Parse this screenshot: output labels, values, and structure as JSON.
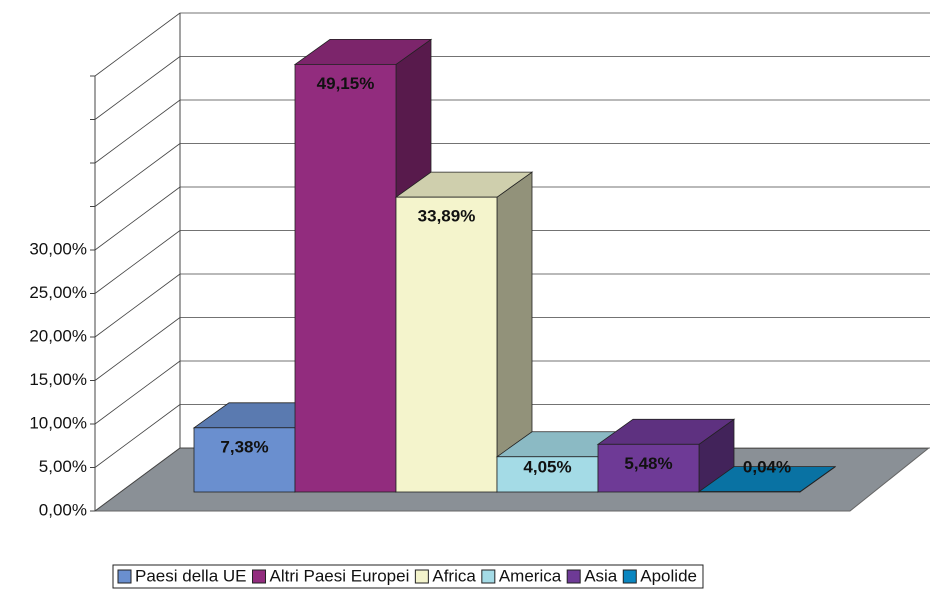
{
  "chart_data": {
    "type": "bar3d",
    "categories": [
      "Paesi della UE",
      "Altri Paesi Europei",
      "Africa",
      "America",
      "Asia",
      "Apolide"
    ],
    "values": [
      7.38,
      49.15,
      33.89,
      4.05,
      5.48,
      0.04
    ],
    "value_labels": [
      "7,38%",
      "49,15%",
      "33,89%",
      "4,05%",
      "5,48%",
      "0,04%"
    ],
    "colors": [
      "#6a8fcf",
      "#922c7e",
      "#f4f4cc",
      "#a4dbe6",
      "#6e3a96",
      "#0a86c0"
    ],
    "ylim": [
      0,
      50
    ],
    "yticks": [
      {
        "value": 0,
        "label": "0,00%"
      },
      {
        "value": 5,
        "label": "5,00%"
      },
      {
        "value": 10,
        "label": "10,00%"
      },
      {
        "value": 15,
        "label": "15,00%"
      },
      {
        "value": 20,
        "label": "20,00%"
      },
      {
        "value": 25,
        "label": "25,00%"
      },
      {
        "value": 30,
        "label": "30,00%"
      },
      {
        "value": 35,
        "label": null
      },
      {
        "value": 40,
        "label": null
      },
      {
        "value": 45,
        "label": null
      },
      {
        "value": 50,
        "label": null
      }
    ],
    "grid": true,
    "legend": "bottom"
  }
}
